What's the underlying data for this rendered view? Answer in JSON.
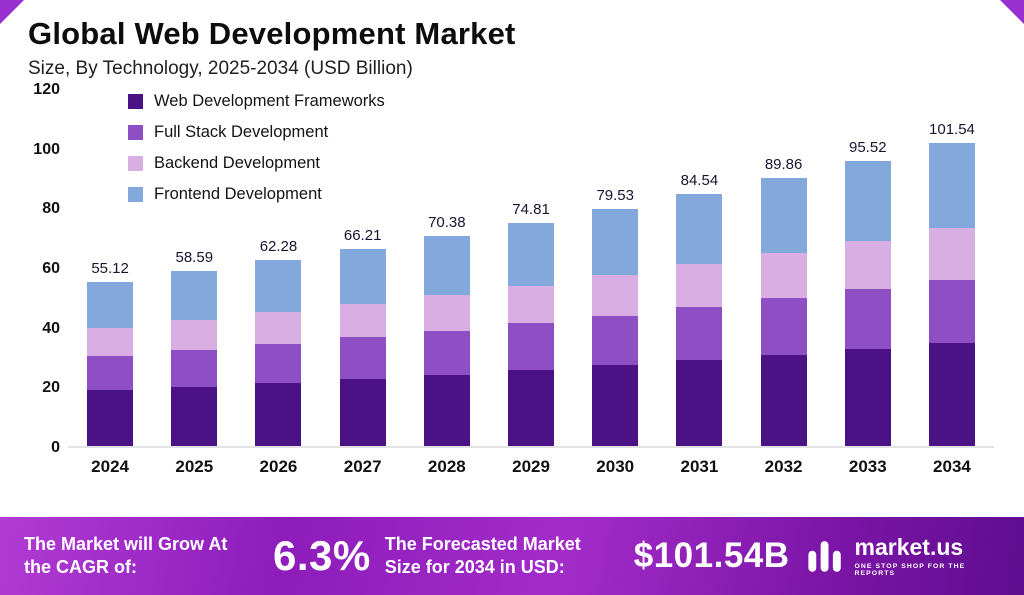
{
  "header": {
    "title": "Global Web Development Market",
    "subtitle": "Size, By Technology, 2025-2034 (USD Billion)"
  },
  "chart_data": {
    "type": "bar",
    "stacked": true,
    "categories": [
      "2024",
      "2025",
      "2026",
      "2027",
      "2028",
      "2029",
      "2030",
      "2031",
      "2032",
      "2033",
      "2034"
    ],
    "series": [
      {
        "name": "Web Development Frameworks",
        "color": "#4a1285",
        "values": [
          18.7,
          19.9,
          21.2,
          22.5,
          23.9,
          25.4,
          27.0,
          28.7,
          30.6,
          32.5,
          34.5
        ]
      },
      {
        "name": "Full Stack Development",
        "color": "#8f4fc4",
        "values": [
          11.6,
          12.3,
          13.1,
          13.9,
          14.8,
          15.7,
          16.7,
          17.8,
          18.9,
          20.1,
          21.3
        ]
      },
      {
        "name": "Backend Development",
        "color": "#d8aee3",
        "values": [
          9.4,
          10.0,
          10.6,
          11.3,
          12.0,
          12.7,
          13.5,
          14.4,
          15.3,
          16.2,
          17.3
        ]
      },
      {
        "name": "Frontend Development",
        "color": "#83a9dc",
        "values": [
          15.4,
          16.4,
          17.4,
          18.5,
          19.7,
          20.9,
          22.3,
          23.7,
          25.2,
          26.7,
          28.4
        ]
      }
    ],
    "totals": [
      "55.12",
      "58.59",
      "62.28",
      "66.21",
      "70.38",
      "74.81",
      "79.53",
      "84.54",
      "89.86",
      "95.52",
      "101.54"
    ],
    "ylim": [
      0,
      120
    ],
    "yticks": [
      0,
      20,
      40,
      60,
      80,
      100,
      120
    ],
    "legend_position": "top-left",
    "grid": false
  },
  "footer": {
    "cagr_label": "The Market will Grow At the CAGR of:",
    "cagr_value": "6.3%",
    "forecast_label": "The Forecasted Market Size for 2034 in USD:",
    "forecast_value": "$101.54B",
    "brand": {
      "name": "market.us",
      "tagline": "ONE STOP SHOP FOR THE REPORTS"
    }
  }
}
